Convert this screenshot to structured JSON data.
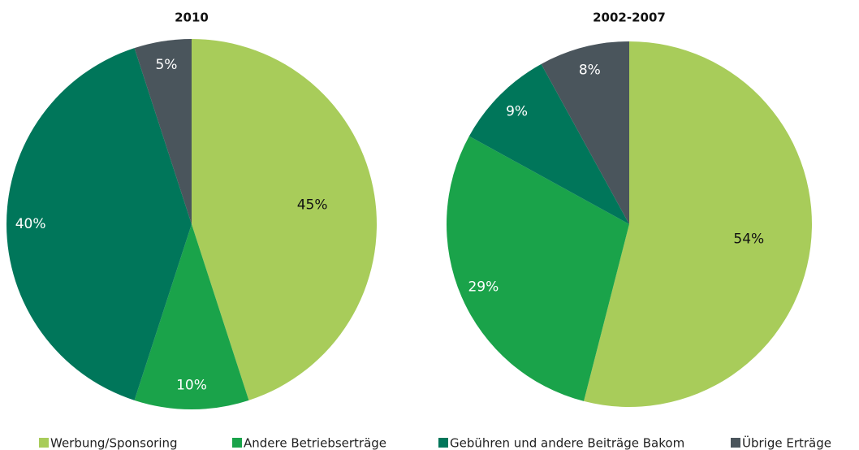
{
  "chart_data": [
    {
      "type": "pie",
      "title": "2010",
      "categories": [
        "Werbung/Sponsoring",
        "Andere Betriebserträge",
        "Gebühren und andere Beiträge Bakom",
        "Übrige Erträge"
      ],
      "values": [
        45,
        10,
        40,
        5
      ],
      "value_labels": [
        "45%",
        "10%",
        "40%",
        "5%"
      ],
      "colors": [
        "#a8cc5a",
        "#1aa34a",
        "#00765a",
        "#4a555c"
      ]
    },
    {
      "type": "pie",
      "title": "2002-2007",
      "categories": [
        "Werbung/Sponsoring",
        "Andere Betriebserträge",
        "Gebühren und andere Beiträge Bakom",
        "Übrige Erträge"
      ],
      "values": [
        54,
        29,
        9,
        8
      ],
      "value_labels": [
        "54%",
        "29%",
        "9%",
        "8%"
      ],
      "colors": [
        "#a8cc5a",
        "#1aa34a",
        "#00765a",
        "#4a555c"
      ]
    }
  ]
}
